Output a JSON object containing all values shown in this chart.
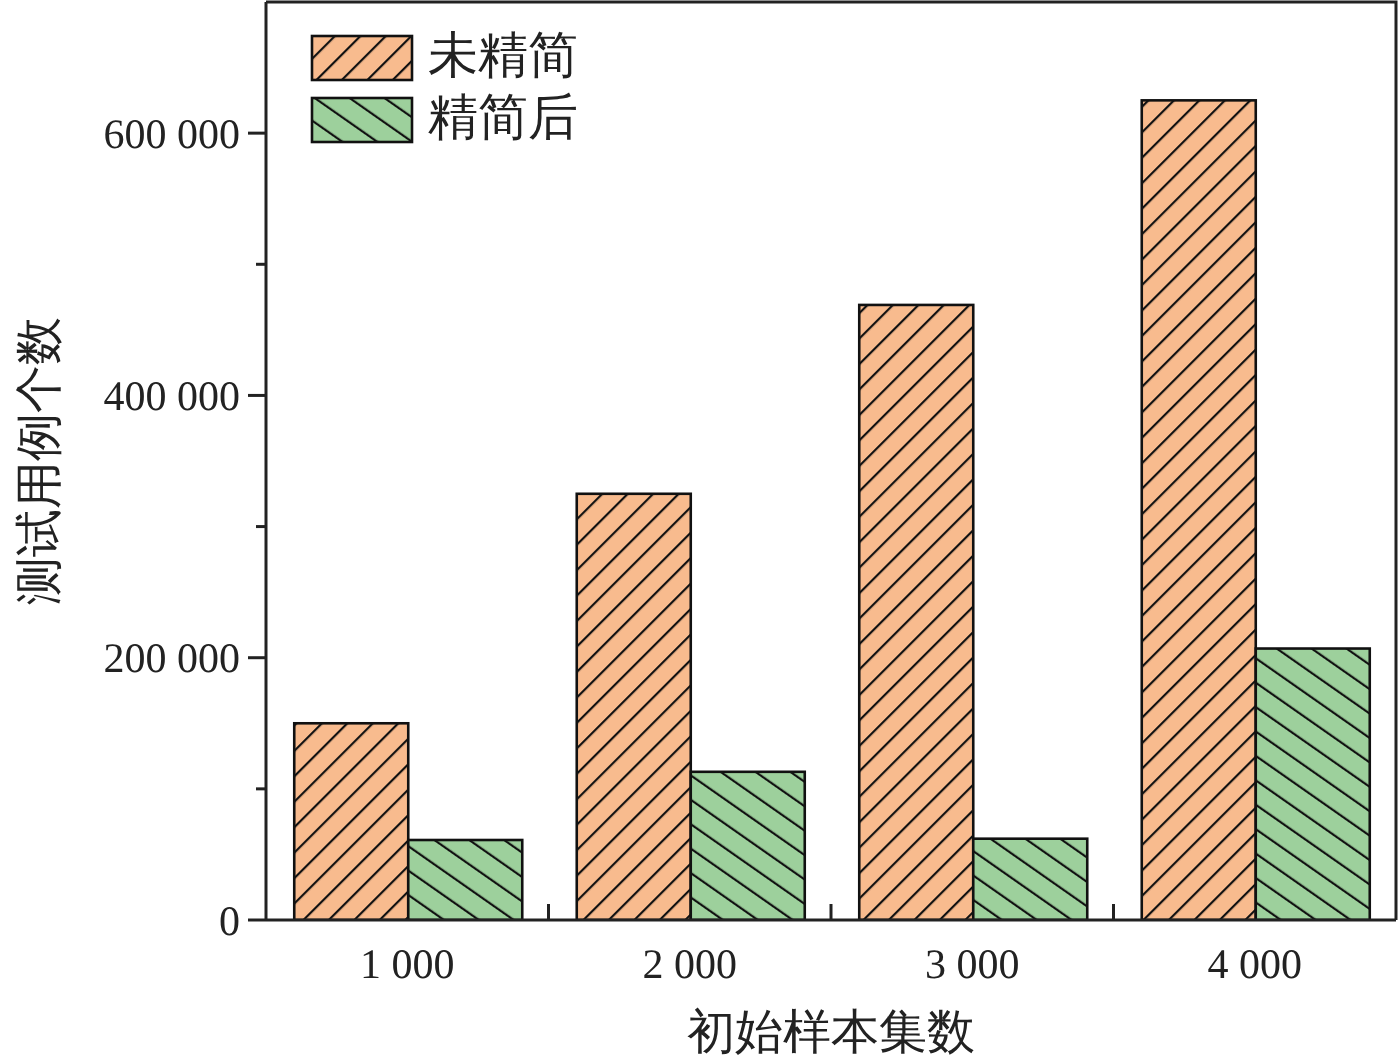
{
  "chart_data": {
    "type": "bar",
    "xlabel": "初始样本集数",
    "ylabel": "测试用例个数",
    "categories": [
      "1 000",
      "2 000",
      "3 000",
      "4 000"
    ],
    "series": [
      {
        "name": "未精简",
        "color": "#f8bb8e",
        "values": [
          150000,
          325000,
          469000,
          625000
        ]
      },
      {
        "name": "精简后",
        "color": "#9dd09c",
        "values": [
          61000,
          113000,
          62000,
          207000
        ]
      }
    ],
    "ylim": [
      0,
      700000
    ],
    "yticks": [
      0,
      {
        "value": 100000,
        "label": null
      },
      {
        "value": 200000,
        "label": "200 000"
      },
      {
        "value": 300000,
        "label": null
      },
      {
        "value": 400000,
        "label": "400 000"
      },
      {
        "value": 500000,
        "label": null
      },
      {
        "value": 600000,
        "label": "600 000"
      }
    ],
    "legend": "top left",
    "grid": false
  }
}
